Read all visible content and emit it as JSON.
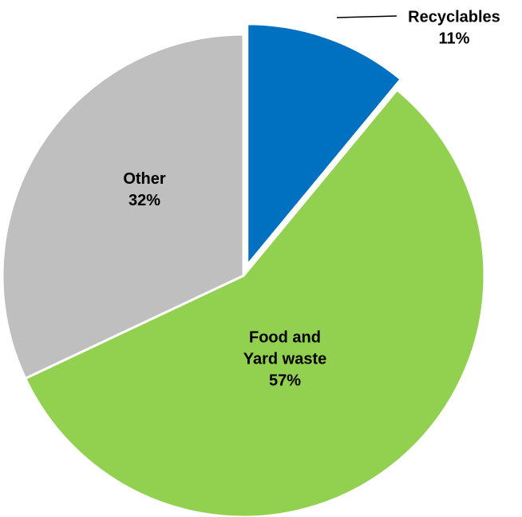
{
  "chart_data": {
    "type": "pie",
    "title": "",
    "legend": "none",
    "slices": [
      {
        "label_lines": [
          "Recyclables"
        ],
        "percent_label": "11%",
        "value": 11,
        "color": "#0070C0",
        "exploded": true
      },
      {
        "label_lines": [
          "Food and",
          "Yard waste"
        ],
        "percent_label": "57%",
        "value": 57,
        "color": "#92D050",
        "exploded": false
      },
      {
        "label_lines": [
          "Other"
        ],
        "percent_label": "32%",
        "value": 32,
        "color": "#BFBFBF",
        "exploded": false
      }
    ]
  }
}
